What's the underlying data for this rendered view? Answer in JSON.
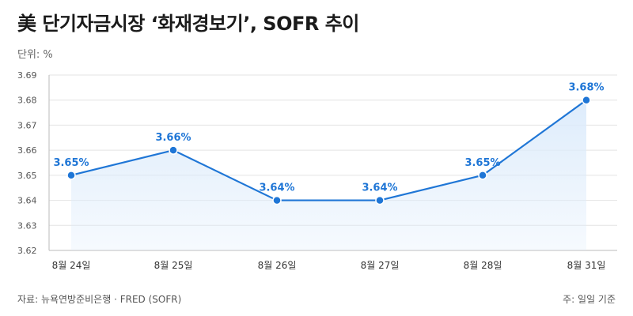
{
  "header": {
    "title": "美 단기자금시장 ‘화재경보기’, SOFR 추이",
    "unit_label": "단위: %"
  },
  "footer": {
    "source": "자료: 뉴욕연방준비은행 · FRED (SOFR)",
    "note": "주: 일일 기준"
  },
  "colors": {
    "line": "#1f76d6",
    "area": "#dcebfb",
    "grid": "#e3e3e3",
    "axis": "#bbbbbb"
  },
  "chart_data": {
    "type": "line",
    "categories": [
      "8월 24일",
      "8월 25일",
      "8월 26일",
      "8월 27일",
      "8월 28일",
      "8월 31일"
    ],
    "values": [
      3.65,
      3.66,
      3.64,
      3.64,
      3.65,
      3.68
    ],
    "data_labels": [
      "3.65%",
      "3.66%",
      "3.64%",
      "3.64%",
      "3.65%",
      "3.68%"
    ],
    "ylim": [
      3.62,
      3.69
    ],
    "yticks": [
      "3.62",
      "3.63",
      "3.64",
      "3.65",
      "3.66",
      "3.67",
      "3.68",
      "3.69"
    ],
    "grid": true,
    "area_fill": true,
    "markers": true
  }
}
